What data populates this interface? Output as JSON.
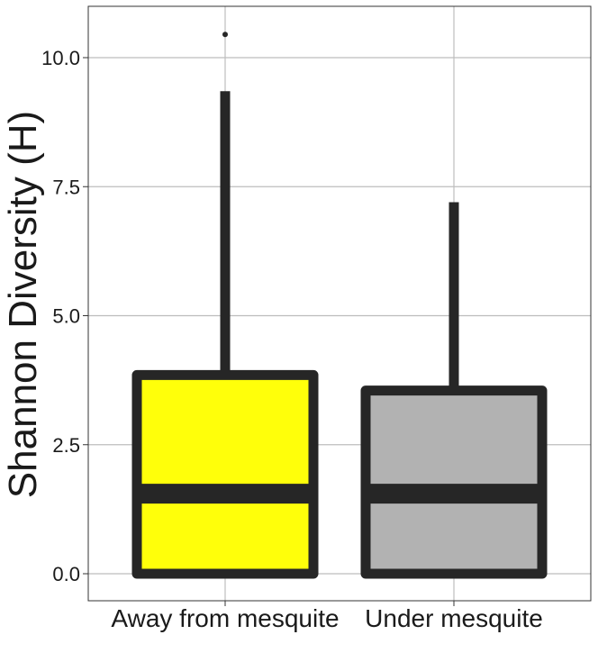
{
  "chart_data": {
    "type": "boxplot",
    "xlabel": "",
    "ylabel": "Shannon Diversity (H)",
    "ylim": [
      -0.5,
      11.0
    ],
    "yticks": [
      0.0,
      2.5,
      5.0,
      7.5,
      10.0
    ],
    "ytick_labels": [
      "0.0",
      "2.5",
      "5.0",
      "7.5",
      "10.0"
    ],
    "grid": true,
    "categories": [
      "Away from mesquite",
      "Under mesquite"
    ],
    "boxes": [
      {
        "category": "Away from mesquite",
        "min": 0.0,
        "q1": 0.0,
        "median": 1.55,
        "q3": 3.85,
        "max": 9.35,
        "outliers": [
          10.45
        ],
        "fill": "#FFFF0A"
      },
      {
        "category": "Under mesquite",
        "min": 0.0,
        "q1": 0.0,
        "median": 1.55,
        "q3": 3.55,
        "max": 7.2,
        "outliers": [],
        "fill": "#B2B2B2"
      }
    ],
    "line_color": "#262626"
  }
}
